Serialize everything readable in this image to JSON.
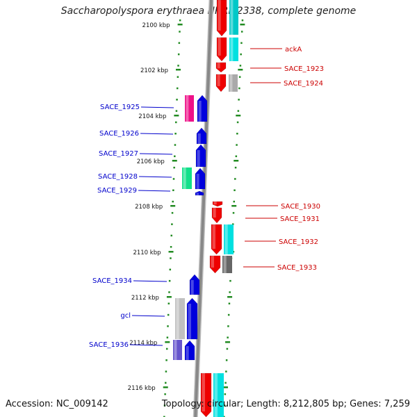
{
  "title": "Saccharopolyspora erythraea NRRL 2338, complete genome",
  "footer": {
    "accession": "Accession: NC_009142",
    "topology": "Topology: circular; Length: 8,212,805 bp; Genes: 7,259"
  },
  "scale_labels": [
    "2100 kbp",
    "2102 kbp",
    "2104 kbp",
    "2106 kbp",
    "2108 kbp",
    "2110 kbp",
    "2112 kbp",
    "2114 kbp",
    "2116 kbp"
  ],
  "forward_genes": [
    "ackA",
    "SACE_1923",
    "SACE_1924",
    "SACE_1930",
    "SACE_1931",
    "SACE_1932",
    "SACE_1933"
  ],
  "reverse_genes": [
    "SACE_1925",
    "SACE_1926",
    "SACE_1927",
    "SACE_1928",
    "SACE_1929",
    "SACE_1934",
    "gcl",
    "SACE_1936"
  ],
  "colors": {
    "forward": "#ee0000",
    "reverse": "#0000dd",
    "backbone": "#888888",
    "tick": "#228b22",
    "label_forward": "#cc0000",
    "label_reverse": "#0000cc"
  }
}
